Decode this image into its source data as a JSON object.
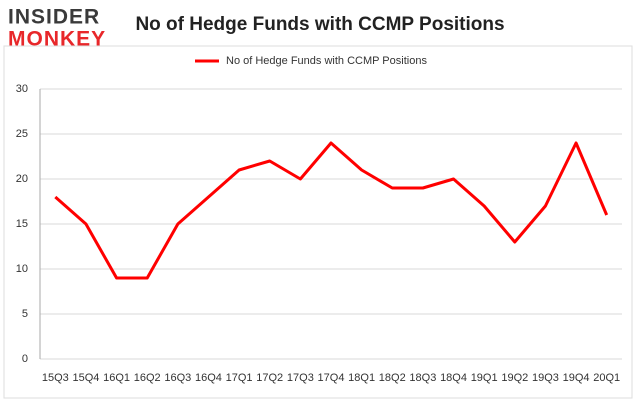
{
  "logo": {
    "top": "INSIDER",
    "bottom": "MONKEY"
  },
  "chart_data": {
    "type": "line",
    "title": "No of Hedge Funds with CCMP Positions",
    "categories": [
      "15Q3",
      "15Q4",
      "16Q1",
      "16Q2",
      "16Q3",
      "16Q4",
      "17Q1",
      "17Q2",
      "17Q3",
      "17Q4",
      "18Q1",
      "18Q2",
      "18Q3",
      "18Q4",
      "19Q1",
      "19Q2",
      "19Q3",
      "19Q4",
      "20Q1"
    ],
    "series": [
      {
        "name": "No of Hedge Funds with CCMP Positions",
        "color": "#ff0000",
        "values": [
          18,
          15,
          9,
          9,
          15,
          18,
          21,
          22,
          20,
          24,
          21,
          19,
          19,
          20,
          17,
          13,
          17,
          24,
          16
        ]
      }
    ],
    "ylim": [
      0,
      30
    ],
    "yticks": [
      0,
      5,
      10,
      15,
      20,
      25,
      30
    ],
    "grid": true,
    "legend": "top"
  }
}
